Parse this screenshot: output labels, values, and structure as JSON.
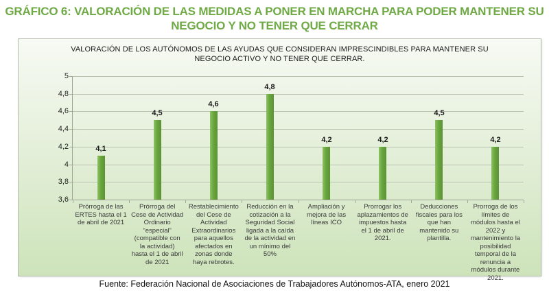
{
  "page": {
    "title_lines": [
      "GRÁFICO 6: VALORACIÓN DE LAS MEDIDAS A PONER EN MARCHA PARA PODER MANTENER SU",
      "NEGOCIO Y NO TENER QUE CERRAR"
    ],
    "footer": "Fuente: Federación Nacional de Asociaciones de Trabajadores Autónomos-ATA, enero 2021"
  },
  "colors": {
    "title_green": "#6faa46",
    "bar_base": "#69a53e",
    "bar_light": "#8cc263",
    "bar_dark": "#5b9334",
    "panel_top": "#f7faf4",
    "panel_bottom": "#cde3ba",
    "gridline": "#b9c1b0",
    "axis": "#9fa795"
  },
  "chart_data": {
    "type": "bar",
    "title_lines": [
      "VALORACIÓN DE LOS AUTÓNOMOS DE LAS AYUDAS QUE CONSIDERAN IMPRESCINDIBLES PARA MANTENER SU",
      "NEGOCIO ACTIVO Y NO TENER QUE CERRAR."
    ],
    "categories": [
      "Prórroga de las ERTES hasta el 1 de abril de 2021",
      "Prórroga del Cese de Actividad Ordinario “especial” (compatible con la actividad) hasta el 1 de abril de 2021",
      "Restablecimiento del Cese de Actividad Extraordinarios para aquellos afectados en zonas donde haya rebrotes.",
      "Reducción en la cotización a la Seguridad Social ligada a la caída de la actividad en un mínimo del 50%",
      "Ampliación y mejora de las líneas ICO",
      "Prorrogar los aplazamientos de impuestos hasta el 1 de abril de 2021.",
      "Deducciones fiscales para los que han mantenido su plantilla.",
      "Prorroga de los límites de módulos hasta el 2022 y mantenimiento la posibilidad temporal de la renuncia a módulos durante 2021."
    ],
    "values": [
      4.1,
      4.5,
      4.6,
      4.8,
      4.2,
      4.2,
      4.5,
      4.2
    ],
    "value_labels": [
      "4,1",
      "4,5",
      "4,6",
      "4,8",
      "4,2",
      "4,2",
      "4,5",
      "4,2"
    ],
    "ylim": [
      3.6,
      5.0
    ],
    "ytick_step": 0.2,
    "yticks": [
      "5",
      "4,8",
      "4,6",
      "4,4",
      "4,2",
      "4",
      "3,8",
      "3,6"
    ],
    "xlabel": "",
    "ylabel": "",
    "grid": true,
    "legend": "none"
  }
}
